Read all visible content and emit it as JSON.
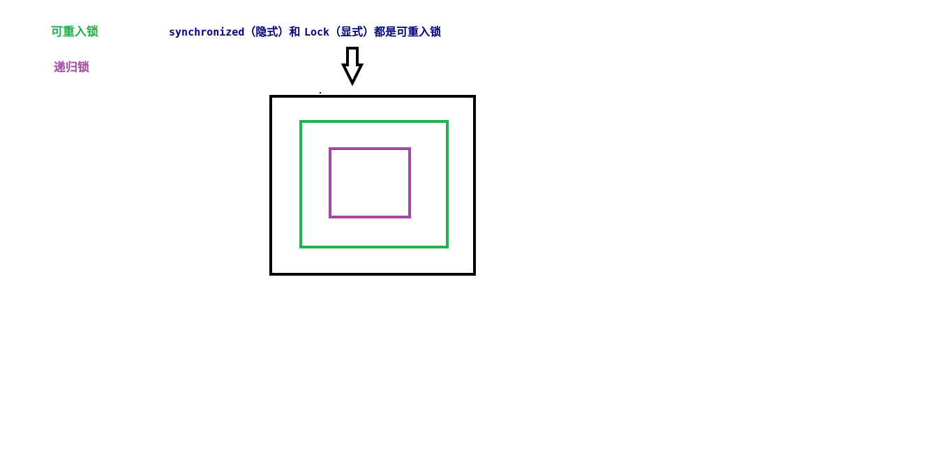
{
  "legend": {
    "reentrant_label": "可重入锁",
    "recursive_label": "递归锁"
  },
  "caption": {
    "keyword_1": "synchronized",
    "note_1": "（隐式）和 ",
    "keyword_2": "Lock",
    "note_2": "（显式）都是可重入锁"
  },
  "colors": {
    "reentrant": "#22b14c",
    "recursive": "#a349a4",
    "caption": "#000080",
    "outer_box": "#000000",
    "arrow": "#000000"
  },
  "icons": {
    "pointer": "down-arrow-icon"
  }
}
